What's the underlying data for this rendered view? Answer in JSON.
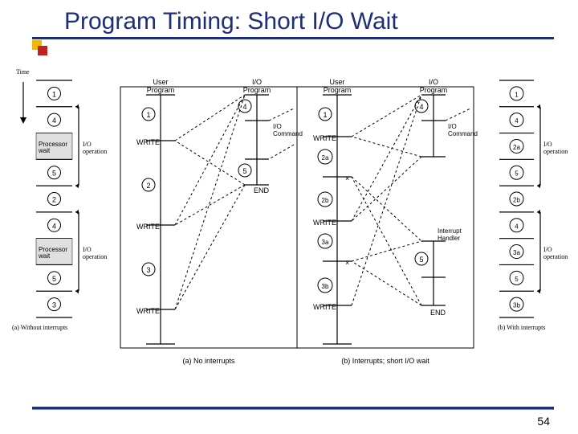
{
  "title": "Program Timing: Short I/O Wait",
  "page_number": "54",
  "colors": {
    "title": "#1e2e78",
    "rule": "#1e2e78",
    "bullet_y": "#f2b705",
    "bullet_r": "#c02020",
    "procbox_fill": "#e0e0e0",
    "bg": "#ffffff",
    "line": "#000000"
  },
  "left_timeline": {
    "header": "Time",
    "caption": "(a) Without interrupts",
    "io_label": "I/O operation",
    "proc_label": "Processor wait",
    "segments": [
      "1",
      "4",
      "5",
      "2",
      "4",
      "5",
      "3"
    ]
  },
  "right_timeline": {
    "caption": "(b) With interrupts",
    "io_label": "I/O operation",
    "segments": [
      "1",
      "4",
      "2a",
      "5",
      "2b",
      "4",
      "3a",
      "5",
      "3b"
    ]
  },
  "center": {
    "caption_a": "(a) No interrupts",
    "caption_b": "(b) Interrupts; short I/O wait",
    "user_prog": "User Program",
    "io_prog": "I/O Program",
    "io_cmd": "I/O Command",
    "write": "WRITE",
    "end": "END",
    "int_handler": "Interrupt Handler",
    "left_user_labels": [
      "1",
      "2",
      "3"
    ],
    "left_io_labels": [
      "4",
      "5"
    ],
    "right_user_labels": [
      "1",
      "2a",
      "2b",
      "3a",
      "3b"
    ],
    "right_io_labels": [
      "4",
      "5"
    ]
  }
}
